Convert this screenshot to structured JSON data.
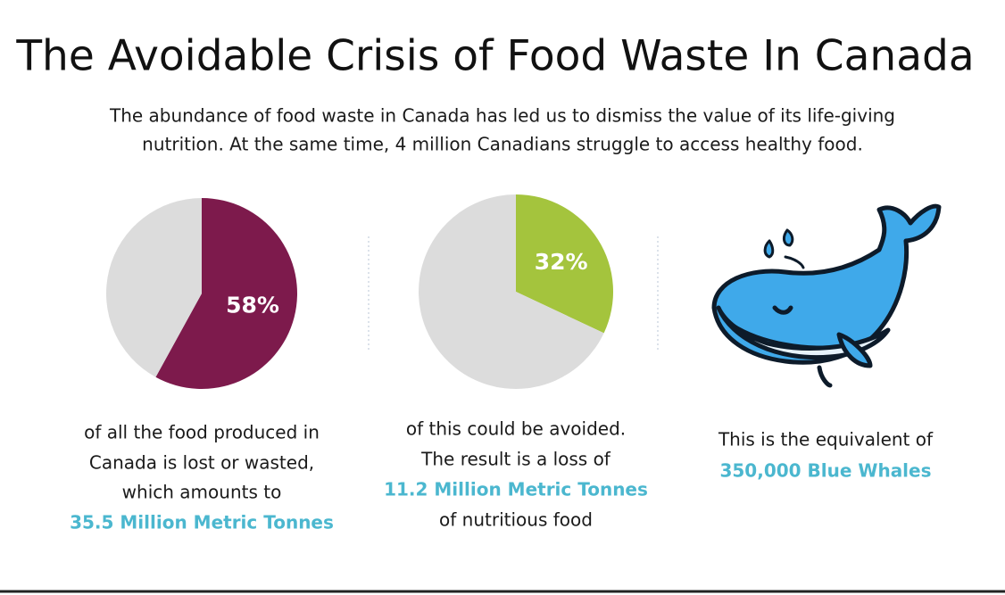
{
  "title": "The Avoidable Crisis of Food Waste In Canada",
  "subtitle": [
    "The abundance of food waste in Canada has led us to dismiss the value of its life-giving",
    "nutrition. At the same time, 4 million Canadians struggle to access healthy food."
  ],
  "chart_data": [
    {
      "type": "pie",
      "values": [
        58,
        42
      ],
      "value_labels": [
        "58%",
        null
      ],
      "colors": [
        "#7d1a4c",
        "#dcdcdc"
      ]
    },
    {
      "type": "pie",
      "values": [
        32,
        68
      ],
      "value_labels": [
        "32%",
        null
      ],
      "colors": [
        "#a4c43d",
        "#dcdcdc"
      ]
    }
  ],
  "captions": [
    [
      "of all the food produced in",
      "Canada is lost or wasted,",
      "which amounts to",
      "35.5 Million Metric Tonnes"
    ],
    [
      "of this could be avoided.",
      "The result is a loss of",
      "11.2 Million Metric Tonnes",
      "of nutritious food"
    ],
    [
      "This is the equivalent of",
      "350,000 Blue Whales"
    ]
  ]
}
